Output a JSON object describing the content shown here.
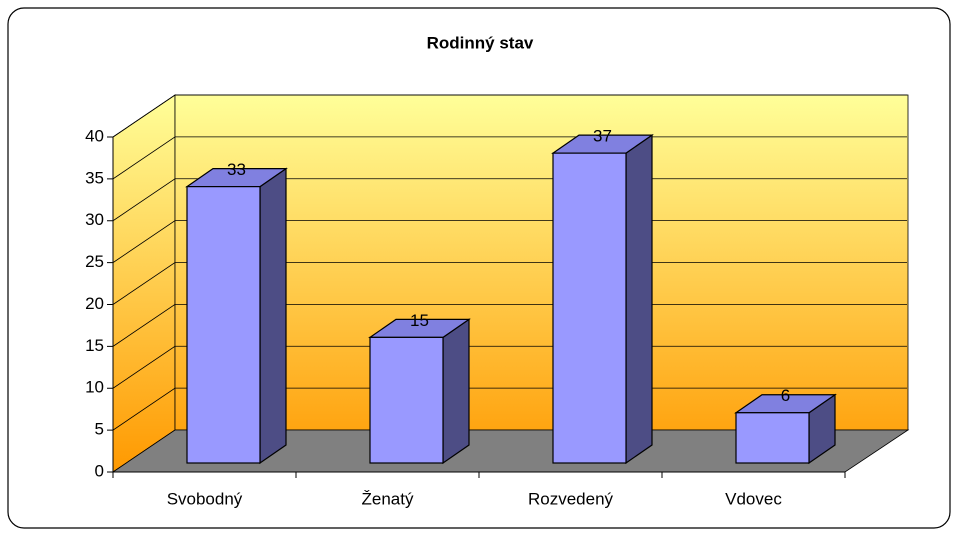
{
  "chart_data": {
    "type": "bar",
    "title": "Rodinný stav",
    "categories": [
      "Svobodný",
      "Ženatý",
      "Rozvedený",
      "Vdovec"
    ],
    "values": [
      33,
      15,
      37,
      6
    ],
    "color": "#9999ff",
    "ylim": [
      0,
      40
    ],
    "yticks": [
      0,
      5,
      10,
      15,
      20,
      25,
      30,
      35,
      40
    ],
    "grid": true
  }
}
